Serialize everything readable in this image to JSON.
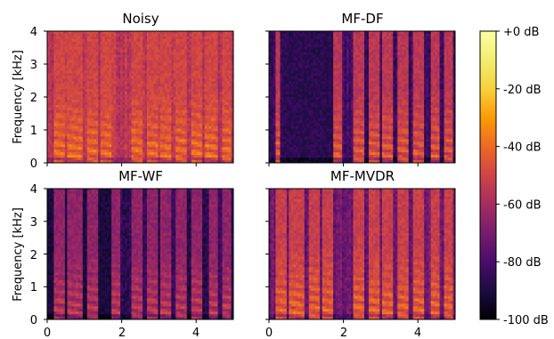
{
  "chart_data": [
    {
      "type": "heatmap",
      "title": "Noisy",
      "ylabel": "Frequency [kHz]",
      "xlabel": "",
      "xlim": [
        0,
        5
      ],
      "ylim": [
        0,
        4
      ],
      "yticks": [
        "0",
        "1",
        "2",
        "3",
        "4"
      ],
      "xticks": [],
      "value_range_db": [
        -100,
        0
      ],
      "noise_floor_db": -55,
      "speech_level_db": -40,
      "silence_segments_s": [],
      "speech_bursts_s": [
        [
          0.15,
          0.45
        ],
        [
          0.55,
          0.95
        ],
        [
          1.05,
          1.35
        ],
        [
          1.45,
          1.75
        ],
        [
          2.25,
          2.55
        ],
        [
          2.65,
          2.95
        ],
        [
          3.05,
          3.35
        ],
        [
          3.45,
          3.75
        ],
        [
          3.85,
          4.15
        ],
        [
          4.25,
          4.6
        ],
        [
          4.7,
          4.95
        ]
      ]
    },
    {
      "type": "heatmap",
      "title": "MF-DF",
      "ylabel": "",
      "xlabel": "",
      "xlim": [
        0,
        5
      ],
      "ylim": [
        0,
        4
      ],
      "yticks": [],
      "xticks": [],
      "value_range_db": [
        -100,
        0
      ],
      "noise_floor_db": -82,
      "speech_level_db": -45,
      "silence_segments_s": [
        [
          0.35,
          1.7
        ]
      ],
      "speech_bursts_s": [
        [
          0.15,
          0.3
        ],
        [
          1.75,
          1.95
        ],
        [
          2.25,
          2.55
        ],
        [
          2.65,
          2.95
        ],
        [
          3.05,
          3.35
        ],
        [
          3.45,
          3.75
        ],
        [
          3.85,
          4.15
        ],
        [
          4.35,
          4.6
        ],
        [
          4.7,
          4.95
        ]
      ]
    },
    {
      "type": "heatmap",
      "title": "MF-WF",
      "ylabel": "Frequency [kHz]",
      "xlabel": "",
      "xlim": [
        0,
        5
      ],
      "ylim": [
        0,
        4
      ],
      "yticks": [
        "0",
        "1",
        "2",
        "3",
        "4"
      ],
      "xticks": [
        "0",
        "2",
        "4"
      ],
      "value_range_db": [
        -100,
        0
      ],
      "noise_floor_db": -86,
      "speech_level_db": -55,
      "silence_segments_s": [
        [
          0.0,
          1.75
        ]
      ],
      "speech_bursts_s": [
        [
          0.15,
          0.45
        ],
        [
          0.55,
          0.95
        ],
        [
          1.05,
          1.35
        ],
        [
          1.75,
          1.95
        ],
        [
          2.25,
          2.55
        ],
        [
          2.65,
          2.95
        ],
        [
          3.05,
          3.35
        ],
        [
          3.45,
          3.75
        ],
        [
          3.85,
          4.15
        ],
        [
          4.35,
          4.6
        ],
        [
          4.7,
          4.95
        ]
      ]
    },
    {
      "type": "heatmap",
      "title": "MF-MVDR",
      "ylabel": "",
      "xlabel": "",
      "xlim": [
        0,
        5
      ],
      "ylim": [
        0,
        4
      ],
      "yticks": [],
      "xticks": [
        "0",
        "2",
        "4"
      ],
      "value_range_db": [
        -100,
        0
      ],
      "noise_floor_db": -72,
      "speech_level_db": -42,
      "silence_segments_s": [],
      "speech_bursts_s": [
        [
          0.15,
          0.45
        ],
        [
          0.55,
          0.95
        ],
        [
          1.05,
          1.35
        ],
        [
          1.45,
          1.75
        ],
        [
          2.25,
          2.55
        ],
        [
          2.65,
          2.95
        ],
        [
          3.05,
          3.35
        ],
        [
          3.45,
          3.75
        ],
        [
          3.85,
          4.15
        ],
        [
          4.35,
          4.6
        ],
        [
          4.7,
          4.95
        ]
      ]
    }
  ],
  "colorbar": {
    "colormap": "inferno",
    "range_db": [
      -100,
      0
    ],
    "tick_labels": [
      "+0 dB",
      "-20 dB",
      "-40 dB",
      "-60 dB",
      "-80 dB",
      "-100 dB"
    ],
    "tick_values": [
      0,
      -20,
      -40,
      -60,
      -80,
      -100
    ]
  }
}
